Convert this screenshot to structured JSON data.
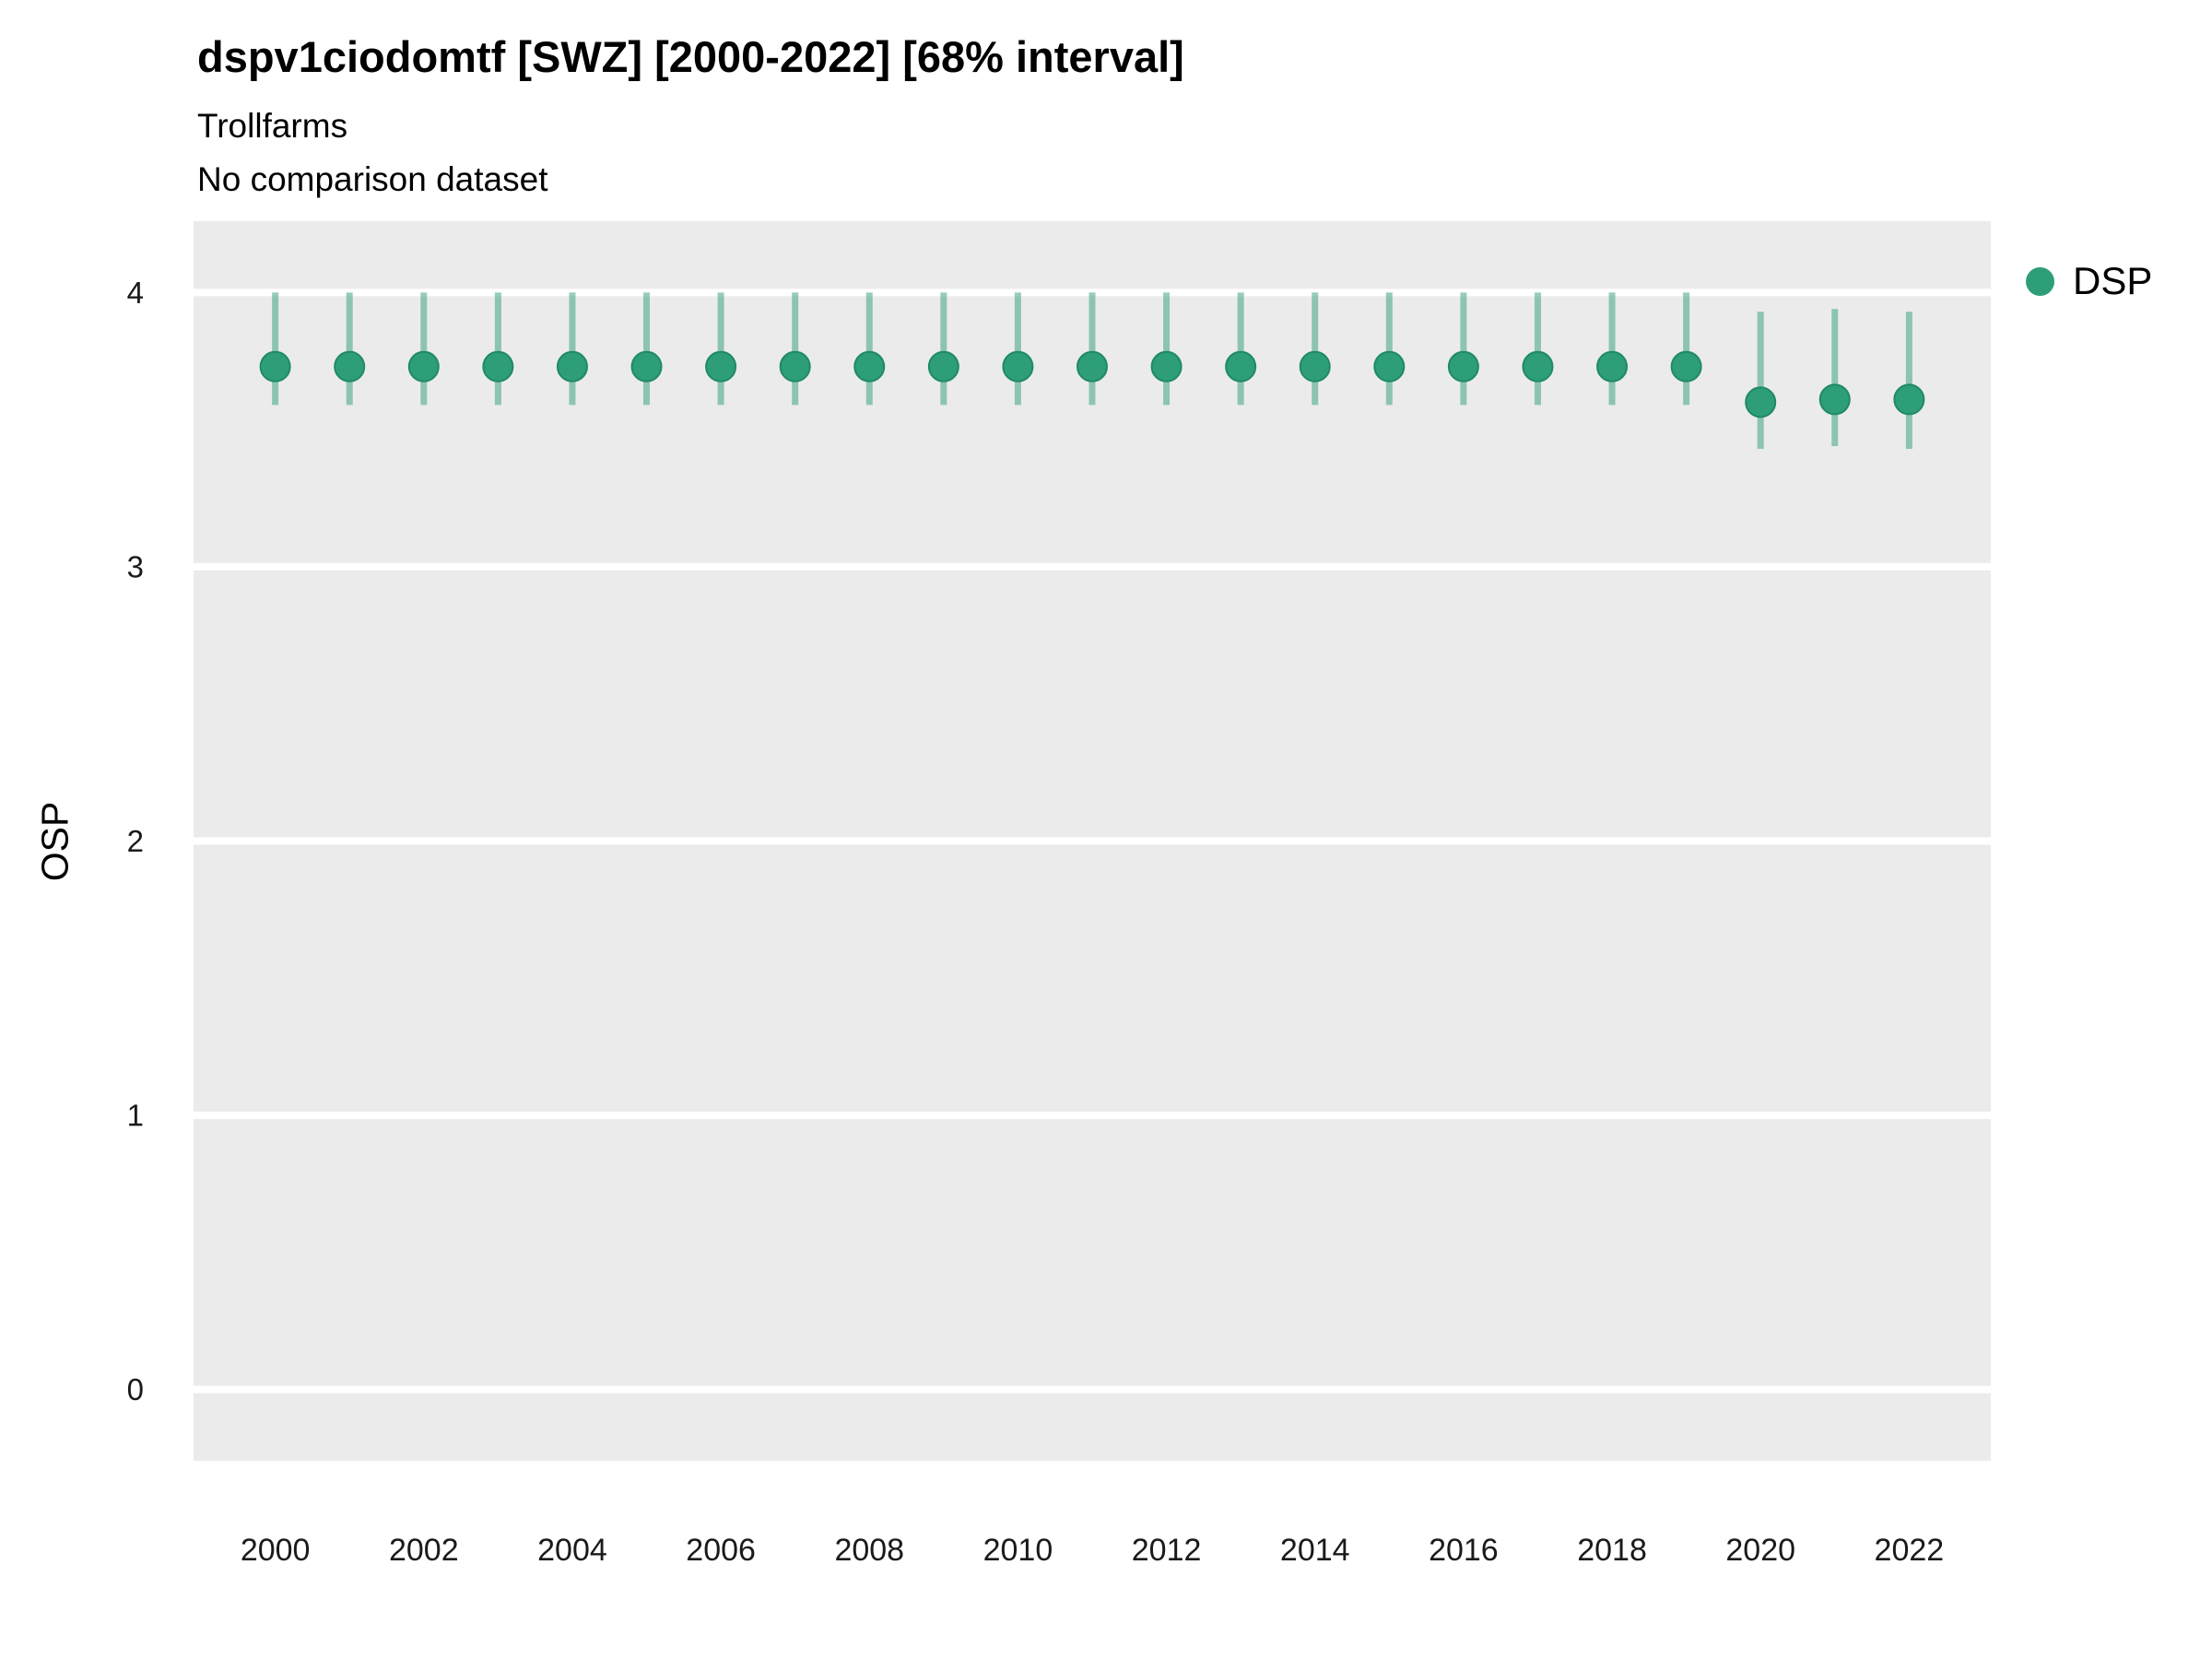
{
  "header": {
    "title": "dspv1ciodomtf [SWZ] [2000-2022] [68% interval]",
    "subtitle": "Trollfarms",
    "note": "No comparison dataset"
  },
  "axes": {
    "y_label": "OSP"
  },
  "legend": {
    "items": [
      {
        "label": "DSP",
        "color": "#2e9e78"
      }
    ]
  },
  "colors": {
    "point": "#2e9e78",
    "point_stroke": "#1f8a63",
    "interval": "#2e9e78",
    "panel_bg": "#ebebeb",
    "grid": "#ffffff",
    "tick_text": "#1a1a1a"
  },
  "chart_data": {
    "type": "scatter",
    "title": "dspv1ciodomtf [SWZ] [2000-2022] [68% interval]",
    "subtitle": "Trollfarms",
    "caption": "No comparison dataset",
    "xlabel": "",
    "ylabel": "OSP",
    "interval_label": "68% interval",
    "legend_position": "right",
    "grid": true,
    "xlim": [
      1998.9,
      2023.1
    ],
    "ylim": [
      -0.26,
      4.26
    ],
    "xticks": [
      2000,
      2002,
      2004,
      2006,
      2008,
      2010,
      2012,
      2014,
      2016,
      2018,
      2020,
      2022
    ],
    "yticks": [
      0,
      1,
      2,
      3,
      4
    ],
    "series": [
      {
        "name": "DSP",
        "x": [
          2000,
          2001,
          2002,
          2003,
          2004,
          2005,
          2006,
          2007,
          2008,
          2009,
          2010,
          2011,
          2012,
          2013,
          2014,
          2015,
          2016,
          2017,
          2018,
          2019,
          2020,
          2021,
          2022
        ],
        "y": [
          3.73,
          3.73,
          3.73,
          3.73,
          3.73,
          3.73,
          3.73,
          3.73,
          3.73,
          3.73,
          3.73,
          3.73,
          3.73,
          3.73,
          3.73,
          3.73,
          3.73,
          3.73,
          3.73,
          3.73,
          3.6,
          3.61,
          3.61
        ],
        "y_lo": [
          3.59,
          3.59,
          3.59,
          3.59,
          3.59,
          3.59,
          3.59,
          3.59,
          3.59,
          3.59,
          3.59,
          3.59,
          3.59,
          3.59,
          3.59,
          3.59,
          3.59,
          3.59,
          3.59,
          3.59,
          3.43,
          3.44,
          3.43
        ],
        "y_hi": [
          4.0,
          4.0,
          4.0,
          4.0,
          4.0,
          4.0,
          4.0,
          4.0,
          4.0,
          4.0,
          4.0,
          4.0,
          4.0,
          4.0,
          4.0,
          4.0,
          4.0,
          4.0,
          4.0,
          4.0,
          3.93,
          3.94,
          3.93
        ]
      }
    ]
  }
}
